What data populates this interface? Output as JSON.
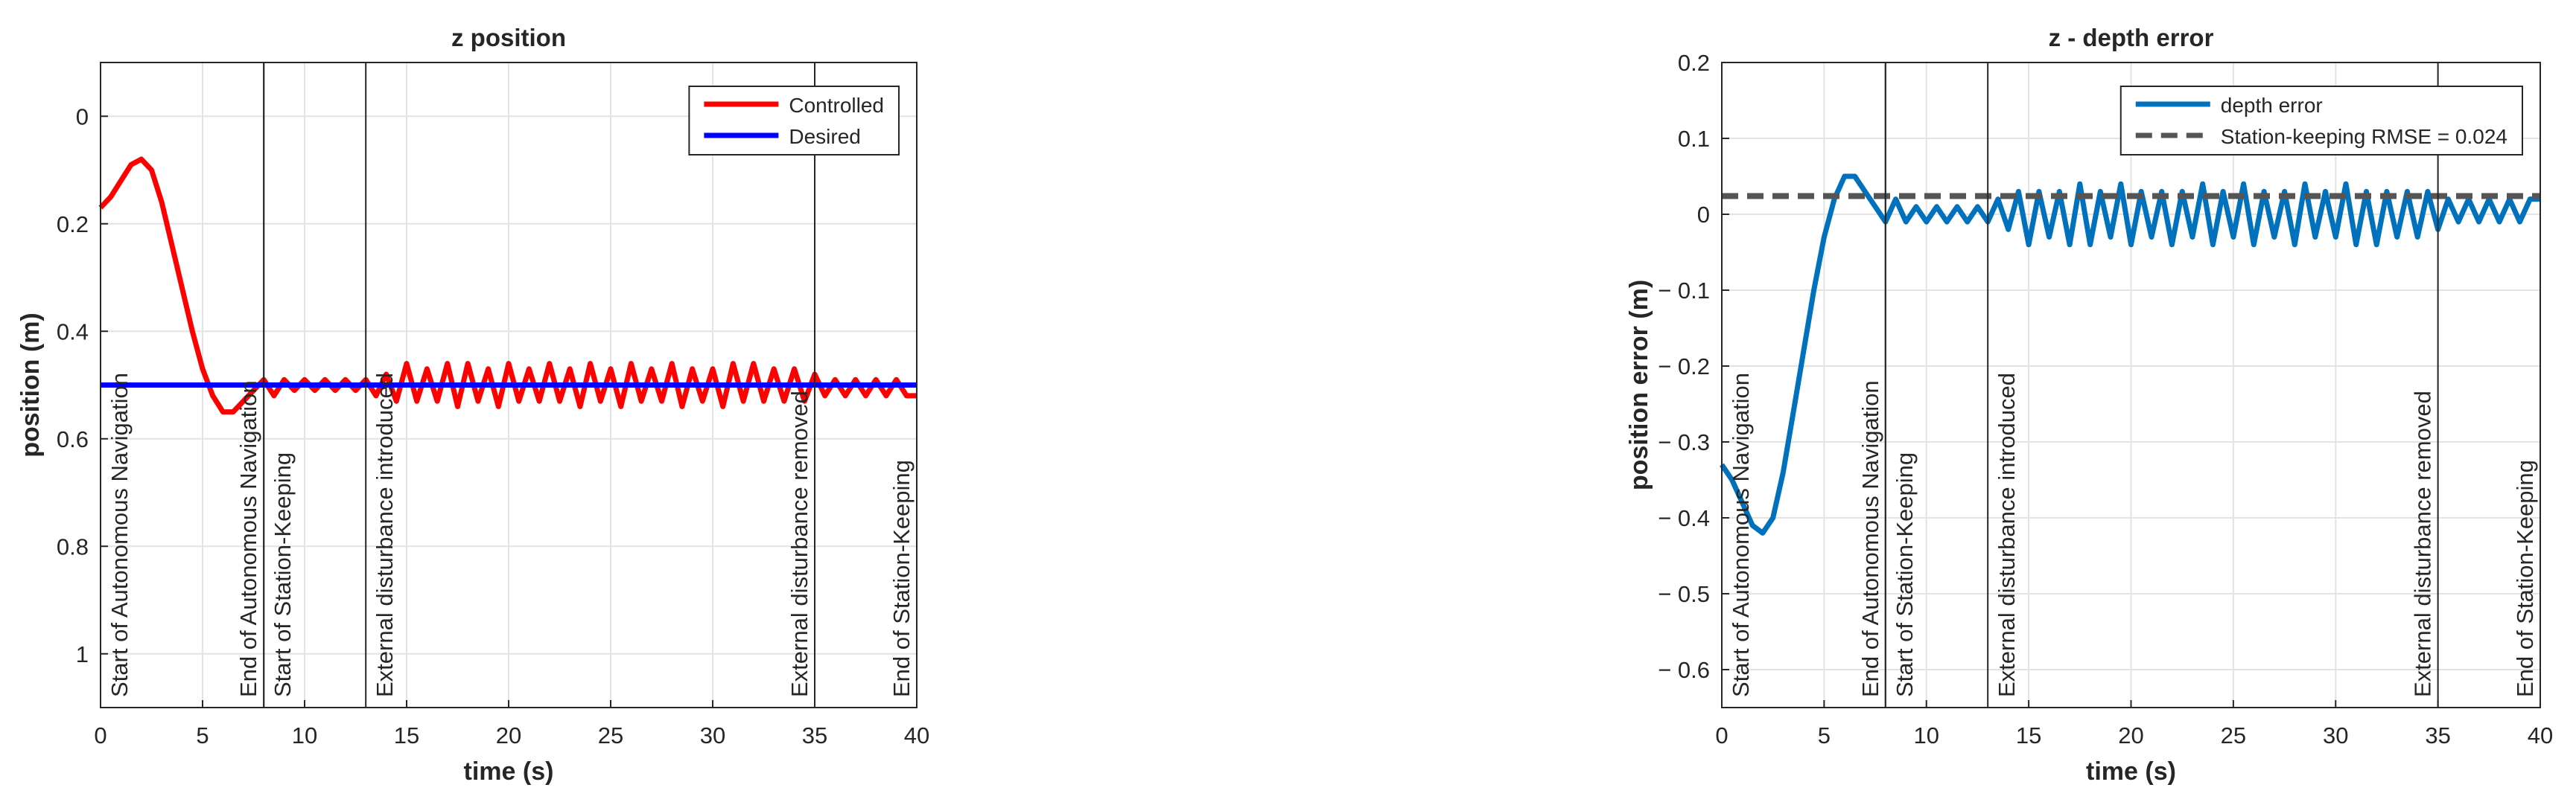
{
  "chart_data": [
    {
      "type": "line",
      "title": "z position",
      "xlabel": "time (s)",
      "ylabel": "position (m)",
      "xlim": [
        0,
        40
      ],
      "xticks": [
        0,
        5,
        10,
        15,
        20,
        25,
        30,
        35,
        40
      ],
      "ylim": [
        -0.1,
        1.1
      ],
      "yticks": [
        0,
        0.2,
        0.4,
        0.6,
        0.8,
        1
      ],
      "ydir": "reverse",
      "grid": true,
      "legend": "northeast",
      "x": [
        0,
        0.5,
        1,
        1.5,
        2,
        2.5,
        3,
        3.5,
        4,
        4.5,
        5,
        5.5,
        6,
        6.5,
        7,
        7.5,
        8,
        8.5,
        9,
        9.5,
        10,
        10.5,
        11,
        11.5,
        12,
        12.5,
        13,
        13.5,
        14,
        14.5,
        15,
        15.5,
        16,
        16.5,
        17,
        17.5,
        18,
        18.5,
        19,
        19.5,
        20,
        20.5,
        21,
        21.5,
        22,
        22.5,
        23,
        23.5,
        24,
        24.5,
        25,
        25.5,
        26,
        26.5,
        27,
        27.5,
        28,
        28.5,
        29,
        29.5,
        30,
        30.5,
        31,
        31.5,
        32,
        32.5,
        33,
        33.5,
        34,
        34.5,
        35,
        35.5,
        36,
        36.5,
        37,
        37.5,
        38,
        38.5,
        39,
        39.5,
        40
      ],
      "series": [
        {
          "name": "Controlled",
          "color": "#ff0000",
          "values": [
            0.17,
            0.15,
            0.12,
            0.09,
            0.08,
            0.1,
            0.16,
            0.24,
            0.32,
            0.4,
            0.47,
            0.52,
            0.55,
            0.55,
            0.53,
            0.51,
            0.49,
            0.52,
            0.49,
            0.51,
            0.49,
            0.51,
            0.49,
            0.51,
            0.49,
            0.51,
            0.49,
            0.52,
            0.48,
            0.53,
            0.46,
            0.53,
            0.47,
            0.53,
            0.46,
            0.54,
            0.46,
            0.53,
            0.47,
            0.54,
            0.46,
            0.53,
            0.47,
            0.53,
            0.46,
            0.53,
            0.47,
            0.54,
            0.46,
            0.53,
            0.47,
            0.54,
            0.46,
            0.53,
            0.47,
            0.53,
            0.46,
            0.54,
            0.47,
            0.53,
            0.47,
            0.54,
            0.46,
            0.53,
            0.46,
            0.53,
            0.47,
            0.53,
            0.47,
            0.53,
            0.48,
            0.52,
            0.49,
            0.52,
            0.49,
            0.52,
            0.49,
            0.52,
            0.49,
            0.52,
            0.52
          ]
        },
        {
          "name": "Desired",
          "color": "#0000ff",
          "x": [
            0,
            40
          ],
          "values": [
            0.5,
            0.5
          ]
        }
      ],
      "annotations": [
        {
          "x": 0,
          "text": "Start of Autonomous Navigation"
        },
        {
          "x": 8,
          "text": "End of Autonomous Navigation"
        },
        {
          "x": 8,
          "text": "Start of Station-Keeping"
        },
        {
          "x": 13,
          "text": "External disturbance introduced"
        },
        {
          "x": 35,
          "text": "External disturbance removed"
        },
        {
          "x": 40,
          "text": "End of Station-Keeping"
        }
      ]
    },
    {
      "type": "line",
      "title": "z - depth error",
      "xlabel": "time (s)",
      "ylabel": "position error (m)",
      "xlim": [
        0,
        40
      ],
      "xticks": [
        0,
        5,
        10,
        15,
        20,
        25,
        30,
        35,
        40
      ],
      "ylim": [
        -0.65,
        0.2
      ],
      "yticks": [
        {
          "value": -0.6,
          "label": "− 0.6"
        },
        {
          "value": -0.5,
          "label": "− 0.5"
        },
        {
          "value": -0.4,
          "label": "− 0.4"
        },
        {
          "value": -0.3,
          "label": "− 0.3"
        },
        {
          "value": -0.2,
          "label": "− 0.2"
        },
        {
          "value": -0.1,
          "label": "− 0.1"
        },
        0,
        0.1,
        0.2
      ],
      "grid": true,
      "legend": "northeast",
      "x": [
        0,
        0.5,
        1,
        1.5,
        2,
        2.5,
        3,
        3.5,
        4,
        4.5,
        5,
        5.5,
        6,
        6.5,
        7,
        7.5,
        8,
        8.5,
        9,
        9.5,
        10,
        10.5,
        11,
        11.5,
        12,
        12.5,
        13,
        13.5,
        14,
        14.5,
        15,
        15.5,
        16,
        16.5,
        17,
        17.5,
        18,
        18.5,
        19,
        19.5,
        20,
        20.5,
        21,
        21.5,
        22,
        22.5,
        23,
        23.5,
        24,
        24.5,
        25,
        25.5,
        26,
        26.5,
        27,
        27.5,
        28,
        28.5,
        29,
        29.5,
        30,
        30.5,
        31,
        31.5,
        32,
        32.5,
        33,
        33.5,
        34,
        34.5,
        35,
        35.5,
        36,
        36.5,
        37,
        37.5,
        38,
        38.5,
        39,
        39.5,
        40
      ],
      "series": [
        {
          "name": "depth error",
          "color": "#0072bd",
          "values": [
            -0.33,
            -0.35,
            -0.38,
            -0.41,
            -0.42,
            -0.4,
            -0.34,
            -0.26,
            -0.18,
            -0.1,
            -0.03,
            0.02,
            0.05,
            0.05,
            0.03,
            0.01,
            -0.01,
            0.02,
            -0.01,
            0.01,
            -0.01,
            0.01,
            -0.01,
            0.01,
            -0.01,
            0.01,
            -0.01,
            0.02,
            -0.02,
            0.03,
            -0.04,
            0.03,
            -0.03,
            0.03,
            -0.04,
            0.04,
            -0.04,
            0.03,
            -0.03,
            0.04,
            -0.04,
            0.03,
            -0.03,
            0.03,
            -0.04,
            0.03,
            -0.03,
            0.04,
            -0.04,
            0.03,
            -0.03,
            0.04,
            -0.04,
            0.03,
            -0.03,
            0.03,
            -0.04,
            0.04,
            -0.03,
            0.03,
            -0.03,
            0.04,
            -0.04,
            0.03,
            -0.04,
            0.03,
            -0.03,
            0.03,
            -0.03,
            0.03,
            -0.02,
            0.02,
            -0.01,
            0.02,
            -0.01,
            0.02,
            -0.01,
            0.02,
            -0.01,
            0.02,
            0.02
          ]
        },
        {
          "name": "Station-keeping RMSE = 0.024",
          "color": "#555555",
          "dashed": true,
          "x": [
            0,
            40
          ],
          "values": [
            0.024,
            0.024
          ]
        }
      ],
      "annotations": [
        {
          "x": 0,
          "text": "Start of Autonomous Navigation"
        },
        {
          "x": 8,
          "text": "End of Autonomous Navigation"
        },
        {
          "x": 8,
          "text": "Start of Station-Keeping"
        },
        {
          "x": 13,
          "text": "External disturbance introduced"
        },
        {
          "x": 35,
          "text": "External disturbance removed"
        },
        {
          "x": 40,
          "text": "End of Station-Keeping"
        }
      ]
    }
  ]
}
